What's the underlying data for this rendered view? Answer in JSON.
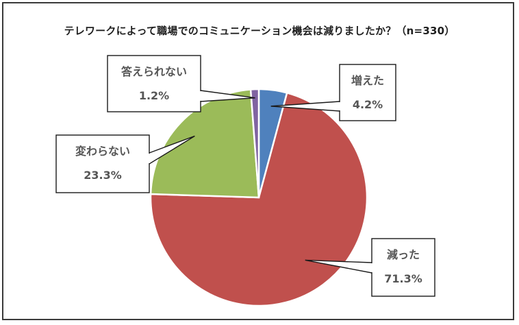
{
  "chart_data": {
    "type": "pie",
    "title": "テレワークによって職場でのコミュニケーション機会は減りましたか？（n=330）",
    "slices": [
      {
        "label": "増えた",
        "value": 4.2,
        "value_label": "4.2%",
        "color": "#4f81bd"
      },
      {
        "label": "減った",
        "value": 71.3,
        "value_label": "71.3%",
        "color": "#c0504d"
      },
      {
        "label": "変わらない",
        "value": 23.3,
        "value_label": "23.3%",
        "color": "#9bbb59"
      },
      {
        "label": "答えられない",
        "value": 1.2,
        "value_label": "1.2%",
        "color": "#8064a2"
      }
    ],
    "start": "12 o'clock",
    "direction": "clockwise",
    "legend": "none",
    "data_labels": "callouts"
  }
}
